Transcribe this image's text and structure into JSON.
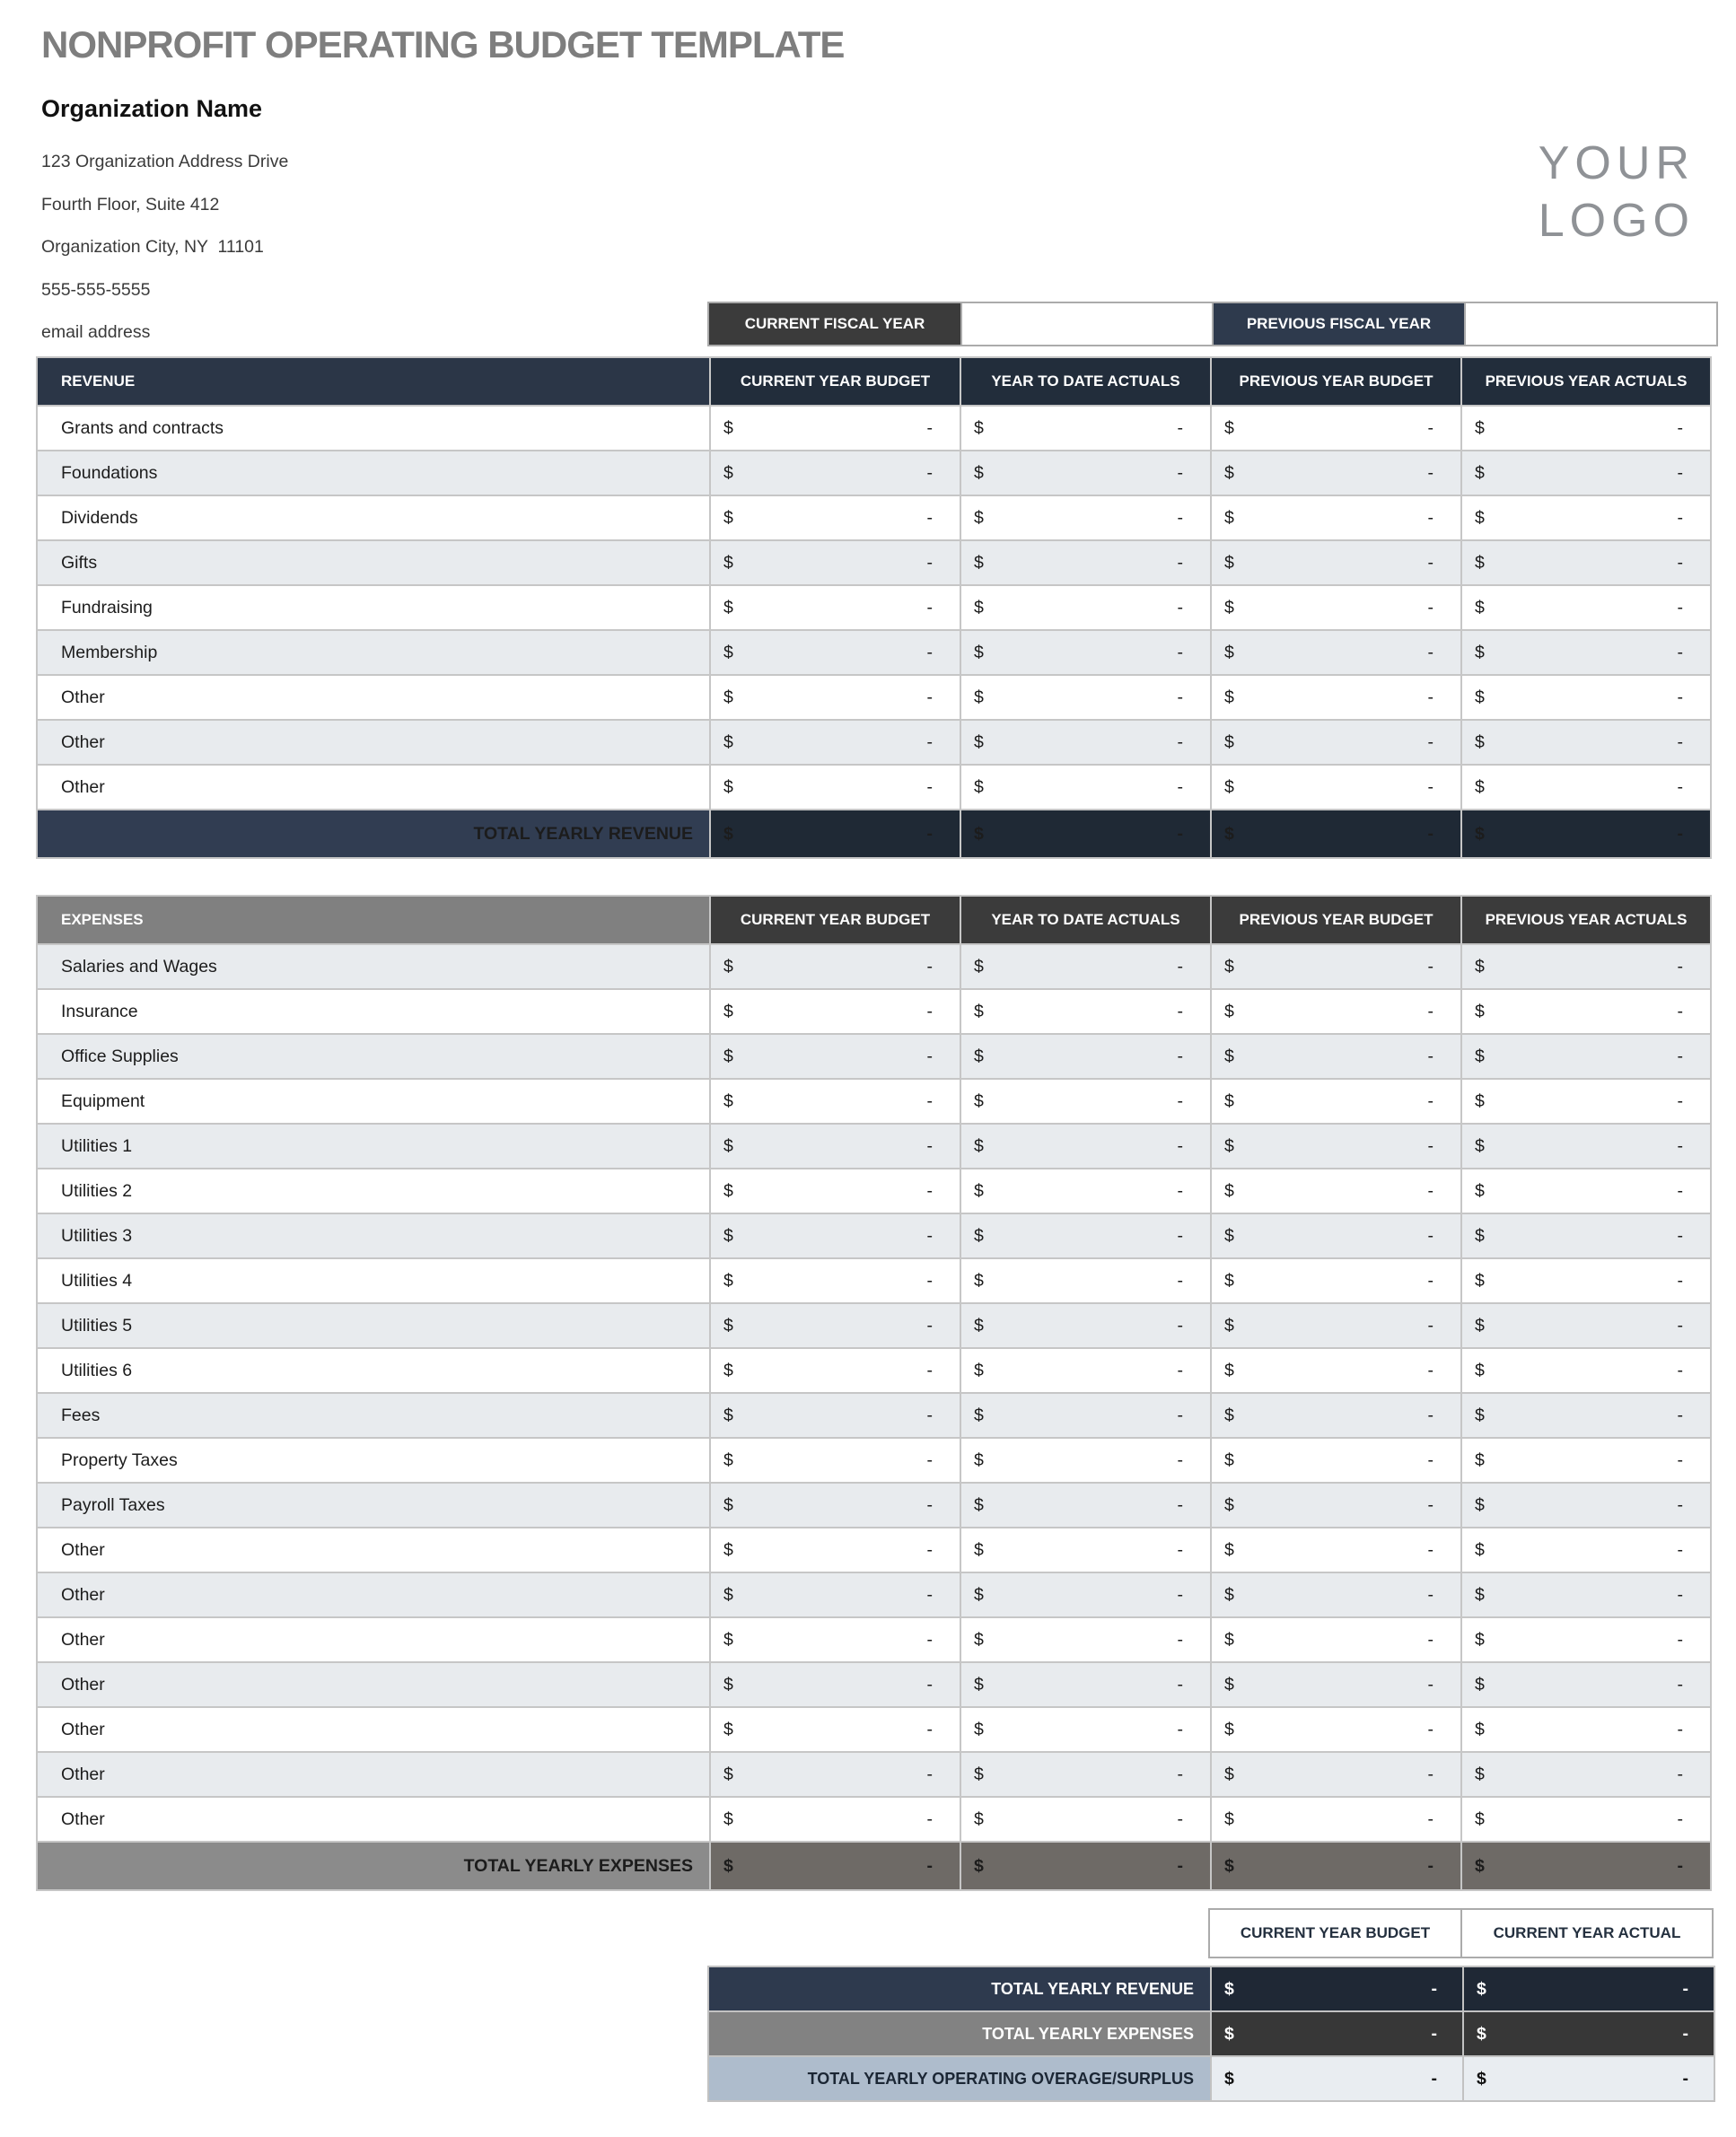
{
  "page": {
    "title": "NONPROFIT OPERATING BUDGET TEMPLATE",
    "logo_line1": "YOUR",
    "logo_line2": "LOGO"
  },
  "org": {
    "name": "Organization Name",
    "address_line1": "123 Organization Address Drive",
    "address_line2": "Fourth Floor, Suite 412",
    "address_line3": "Organization City, NY  11101",
    "phone": "555-555-5555",
    "email": "email address"
  },
  "fiscal": {
    "current_label": "CURRENT FISCAL YEAR",
    "current_value": "",
    "previous_label": "PREVIOUS FISCAL YEAR",
    "previous_value": ""
  },
  "columns": [
    "CURRENT YEAR BUDGET",
    "YEAR TO DATE ACTUALS",
    "PREVIOUS YEAR BUDGET",
    "PREVIOUS YEAR ACTUALS"
  ],
  "cell": {
    "currency": "$",
    "amount": "-"
  },
  "revenue": {
    "section_label": "REVENUE",
    "rows": [
      "Grants and contracts",
      "Foundations",
      "Dividends",
      "Gifts",
      "Fundraising",
      "Membership",
      "Other",
      "Other",
      "Other"
    ],
    "total_label": "TOTAL YEARLY REVENUE"
  },
  "expenses": {
    "section_label": "EXPENSES",
    "rows": [
      "Salaries and Wages",
      "Insurance",
      "Office Supplies",
      "Equipment",
      "Utilities 1",
      "Utilities 2",
      "Utilities 3",
      "Utilities 4",
      "Utilities 5",
      "Utilities 6",
      "Fees",
      "Property Taxes",
      "Payroll Taxes",
      "Other",
      "Other",
      "Other",
      "Other",
      "Other",
      "Other",
      "Other"
    ],
    "total_label": "TOTAL YEARLY EXPENSES"
  },
  "summary": {
    "col1": "CURRENT YEAR BUDGET",
    "col2": "CURRENT YEAR ACTUAL",
    "rows": [
      {
        "label": "TOTAL YEARLY REVENUE",
        "theme": "navy"
      },
      {
        "label": "TOTAL YEARLY EXPENSES",
        "theme": "charcoal"
      },
      {
        "label": "TOTAL YEARLY OPERATING OVERAGE/SURPLUS",
        "theme": "steel"
      }
    ]
  },
  "colors": {
    "title_gray": "#7E7E7E",
    "logo_gray": "#8F9296",
    "header_navy": "#222D3B",
    "section_navy": "#2B3647",
    "total_label_navy": "#313D52",
    "total_value_navy": "#1F2935",
    "fiscal_charcoal": "#3B3B3B",
    "fiscal_navy": "#2E3A4D",
    "expenses_header_gray": "#808080",
    "expenses_header_charcoal": "#3B3B3B",
    "expenses_total_label_gray": "#8B8B8B",
    "expenses_total_value_warm_gray": "#6E6A66",
    "surplus_steel": "#AEBCCC",
    "surplus_value_bg": "#E9EDF1",
    "row_alt": "#E8EBEE",
    "grid_border": "#C6C6C6",
    "box_border": "#ABABAB"
  }
}
